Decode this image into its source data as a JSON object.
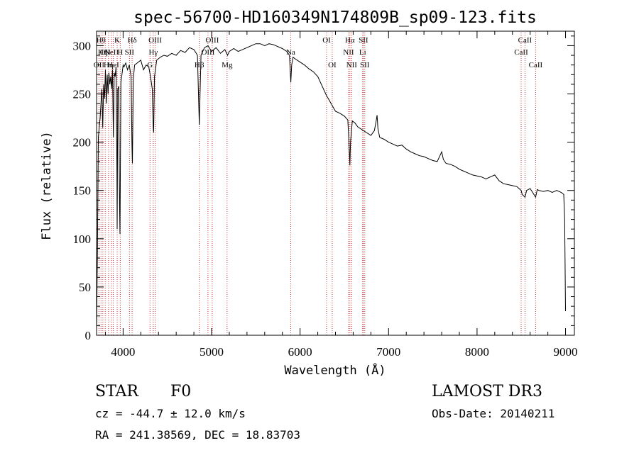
{
  "chart_data": {
    "type": "line",
    "title": "spec-56700-HD160349N174809B_sp09-123.fits",
    "xlabel": "Wavelength (Å)",
    "ylabel": "Flux (relative)",
    "xlim": [
      3700,
      9100
    ],
    "ylim": [
      0,
      315
    ],
    "xticks": [
      4000,
      5000,
      6000,
      7000,
      8000,
      9000
    ],
    "yticks": [
      0,
      50,
      100,
      150,
      200,
      250,
      300
    ],
    "series": [
      {
        "name": "spectrum",
        "points": [
          [
            3700,
            5
          ],
          [
            3710,
            85
          ],
          [
            3720,
            205
          ],
          [
            3730,
            215
          ],
          [
            3740,
            225
          ],
          [
            3750,
            240
          ],
          [
            3760,
            255
          ],
          [
            3770,
            215
          ],
          [
            3780,
            260
          ],
          [
            3790,
            245
          ],
          [
            3800,
            275
          ],
          [
            3810,
            240
          ],
          [
            3820,
            270
          ],
          [
            3830,
            250
          ],
          [
            3840,
            272
          ],
          [
            3850,
            260
          ],
          [
            3860,
            268
          ],
          [
            3870,
            255
          ],
          [
            3880,
            275
          ],
          [
            3890,
            205
          ],
          [
            3900,
            272
          ],
          [
            3910,
            268
          ],
          [
            3920,
            278
          ],
          [
            3930,
            170
          ],
          [
            3933,
            110
          ],
          [
            3940,
            255
          ],
          [
            3950,
            258
          ],
          [
            3960,
            135
          ],
          [
            3965,
            105
          ],
          [
            3975,
            262
          ],
          [
            3990,
            272
          ],
          [
            4000,
            280
          ],
          [
            4010,
            278
          ],
          [
            4030,
            282
          ],
          [
            4050,
            275
          ],
          [
            4070,
            280
          ],
          [
            4090,
            268
          ],
          [
            4100,
            195
          ],
          [
            4105,
            178
          ],
          [
            4115,
            265
          ],
          [
            4130,
            280
          ],
          [
            4160,
            282
          ],
          [
            4200,
            285
          ],
          [
            4230,
            275
          ],
          [
            4260,
            280
          ],
          [
            4290,
            278
          ],
          [
            4310,
            268
          ],
          [
            4330,
            255
          ],
          [
            4340,
            215
          ],
          [
            4345,
            210
          ],
          [
            4355,
            268
          ],
          [
            4380,
            285
          ],
          [
            4420,
            288
          ],
          [
            4460,
            290
          ],
          [
            4500,
            289
          ],
          [
            4550,
            292
          ],
          [
            4600,
            290
          ],
          [
            4650,
            295
          ],
          [
            4700,
            293
          ],
          [
            4750,
            298
          ],
          [
            4800,
            296
          ],
          [
            4840,
            290
          ],
          [
            4855,
            240
          ],
          [
            4861,
            218
          ],
          [
            4868,
            245
          ],
          [
            4880,
            290
          ],
          [
            4920,
            298
          ],
          [
            4960,
            300
          ],
          [
            5000,
            294
          ],
          [
            5050,
            298
          ],
          [
            5100,
            292
          ],
          [
            5150,
            296
          ],
          [
            5180,
            290
          ],
          [
            5200,
            294
          ],
          [
            5250,
            297
          ],
          [
            5300,
            294
          ],
          [
            5350,
            296
          ],
          [
            5400,
            298
          ],
          [
            5450,
            300
          ],
          [
            5500,
            302
          ],
          [
            5550,
            302
          ],
          [
            5600,
            300
          ],
          [
            5650,
            302
          ],
          [
            5700,
            301
          ],
          [
            5750,
            299
          ],
          [
            5800,
            297
          ],
          [
            5850,
            294
          ],
          [
            5880,
            290
          ],
          [
            5890,
            272
          ],
          [
            5895,
            262
          ],
          [
            5905,
            280
          ],
          [
            5920,
            288
          ],
          [
            5950,
            286
          ],
          [
            6000,
            283
          ],
          [
            6050,
            280
          ],
          [
            6100,
            276
          ],
          [
            6150,
            273
          ],
          [
            6200,
            268
          ],
          [
            6250,
            258
          ],
          [
            6280,
            252
          ],
          [
            6300,
            248
          ],
          [
            6320,
            245
          ],
          [
            6350,
            240
          ],
          [
            6400,
            232
          ],
          [
            6450,
            230
          ],
          [
            6500,
            227
          ],
          [
            6540,
            223
          ],
          [
            6555,
            195
          ],
          [
            6563,
            176
          ],
          [
            6570,
            200
          ],
          [
            6590,
            222
          ],
          [
            6620,
            220
          ],
          [
            6650,
            216
          ],
          [
            6700,
            213
          ],
          [
            6750,
            210
          ],
          [
            6800,
            207
          ],
          [
            6840,
            212
          ],
          [
            6860,
            222
          ],
          [
            6870,
            228
          ],
          [
            6880,
            214
          ],
          [
            6900,
            205
          ],
          [
            6950,
            203
          ],
          [
            7000,
            200
          ],
          [
            7050,
            198
          ],
          [
            7100,
            196
          ],
          [
            7150,
            197
          ],
          [
            7200,
            193
          ],
          [
            7250,
            190
          ],
          [
            7300,
            188
          ],
          [
            7350,
            186
          ],
          [
            7400,
            185
          ],
          [
            7450,
            183
          ],
          [
            7500,
            181
          ],
          [
            7550,
            180
          ],
          [
            7580,
            186
          ],
          [
            7600,
            190
          ],
          [
            7620,
            182
          ],
          [
            7650,
            178
          ],
          [
            7700,
            177
          ],
          [
            7750,
            175
          ],
          [
            7800,
            172
          ],
          [
            7850,
            170
          ],
          [
            7900,
            168
          ],
          [
            7950,
            166
          ],
          [
            8000,
            165
          ],
          [
            8050,
            164
          ],
          [
            8100,
            162
          ],
          [
            8150,
            164
          ],
          [
            8200,
            166
          ],
          [
            8250,
            160
          ],
          [
            8300,
            157
          ],
          [
            8350,
            156
          ],
          [
            8400,
            155
          ],
          [
            8450,
            154
          ],
          [
            8498,
            150
          ],
          [
            8510,
            146
          ],
          [
            8542,
            143
          ],
          [
            8560,
            150
          ],
          [
            8600,
            152
          ],
          [
            8662,
            143
          ],
          [
            8680,
            151
          ],
          [
            8700,
            150
          ],
          [
            8750,
            149
          ],
          [
            8800,
            150
          ],
          [
            8850,
            148
          ],
          [
            8900,
            150
          ],
          [
            8950,
            148
          ],
          [
            8980,
            146
          ],
          [
            8990,
            120
          ],
          [
            9000,
            25
          ]
        ]
      }
    ],
    "line_markers": [
      {
        "wl": 3727,
        "label": "OII",
        "row": 2
      },
      {
        "wl": 3750,
        "label": "Hθ",
        "row": 0
      },
      {
        "wl": 3771,
        "label": "Hη",
        "row": 1
      },
      {
        "wl": 3798,
        "label": "OII",
        "row": 1
      },
      {
        "wl": 3835,
        "label": "Hη",
        "row": 2
      },
      {
        "wl": 3869,
        "label": "NeII",
        "row": 1
      },
      {
        "wl": 3889,
        "label": "HeI",
        "row": 2
      },
      {
        "wl": 3933,
        "label": "K",
        "row": 0
      },
      {
        "wl": 3968,
        "label": "H",
        "row": 1
      },
      {
        "wl": 4072,
        "label": "SII",
        "row": 1
      },
      {
        "wl": 4102,
        "label": "Hδ",
        "row": 0
      },
      {
        "wl": 4304,
        "label": "G",
        "row": 2
      },
      {
        "wl": 4341,
        "label": "Hγ",
        "row": 1
      },
      {
        "wl": 4363,
        "label": "OIII",
        "row": 0
      },
      {
        "wl": 4861,
        "label": "Hβ",
        "row": 2
      },
      {
        "wl": 4959,
        "label": "OIII",
        "row": 1
      },
      {
        "wl": 5007,
        "label": "OIII",
        "row": 0
      },
      {
        "wl": 5175,
        "label": "Mg",
        "row": 2
      },
      {
        "wl": 5894,
        "label": "Na",
        "row": 1
      },
      {
        "wl": 6300,
        "label": "OI",
        "row": 0
      },
      {
        "wl": 6363,
        "label": "OI",
        "row": 2
      },
      {
        "wl": 6548,
        "label": "NII",
        "row": 1
      },
      {
        "wl": 6563,
        "label": "Hα",
        "row": 0
      },
      {
        "wl": 6583,
        "label": "NII",
        "row": 2
      },
      {
        "wl": 6707,
        "label": "Li",
        "row": 1
      },
      {
        "wl": 6716,
        "label": "SII",
        "row": 0
      },
      {
        "wl": 6731,
        "label": "SII",
        "row": 2
      },
      {
        "wl": 8498,
        "label": "CaII",
        "row": 1
      },
      {
        "wl": 8542,
        "label": "CaII",
        "row": 0
      },
      {
        "wl": 8662,
        "label": "CaII",
        "row": 2
      }
    ]
  },
  "info": {
    "object_class": "STAR",
    "subclass": "F0",
    "cz": "cz = -44.7 ± 12.0 km/s",
    "coords": "RA = 241.38569, DEC =  18.83703",
    "survey": "LAMOST DR3",
    "obs_date": "Obs-Date: 20140211"
  }
}
